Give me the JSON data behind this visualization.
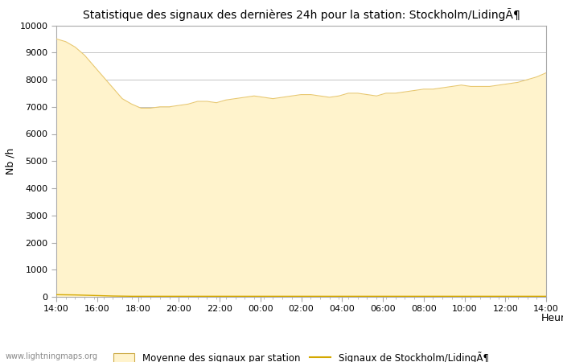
{
  "title": "Statistique des signaux des dernières 24h pour la station: Stockholm/LidingA¶",
  "title_display": "Statistique des signaux des dernières 24h pour la station: Stockholm/LidingÃ¶",
  "xlabel": "Heure",
  "ylabel": "Nb /h",
  "ylim": [
    0,
    10000
  ],
  "yticks": [
    0,
    1000,
    2000,
    3000,
    4000,
    5000,
    6000,
    7000,
    8000,
    9000,
    10000
  ],
  "xtick_labels": [
    "14:00",
    "16:00",
    "18:00",
    "20:00",
    "22:00",
    "00:00",
    "02:00",
    "04:00",
    "06:00",
    "08:00",
    "10:00",
    "12:00",
    "14:00"
  ],
  "fill_color": "#FFF3CC",
  "fill_edge_color": "#E8C870",
  "line_color": "#D4A800",
  "background_color": "#ffffff",
  "grid_color": "#bbbbbb",
  "watermark": "www.lightningmaps.org",
  "legend_fill_label": "Moyenne des signaux par station",
  "legend_line_label": "Signaux de Stockholm/LidingÃ¶",
  "avg_values": [
    9500,
    9400,
    9200,
    8900,
    8500,
    8100,
    7700,
    7300,
    7100,
    6950,
    6950,
    7000,
    7000,
    7050,
    7100,
    7200,
    7200,
    7150,
    7250,
    7300,
    7350,
    7400,
    7350,
    7300,
    7350,
    7400,
    7450,
    7450,
    7400,
    7350,
    7400,
    7500,
    7500,
    7450,
    7400,
    7500,
    7500,
    7550,
    7600,
    7650,
    7650,
    7700,
    7750,
    7800,
    7750,
    7750,
    7750,
    7800,
    7850,
    7900,
    8000,
    8100,
    8250
  ],
  "station_values": [
    80,
    75,
    70,
    60,
    50,
    40,
    30,
    25,
    20,
    20,
    20,
    20,
    20,
    20,
    20,
    20,
    20,
    20,
    20,
    20,
    20,
    20,
    20,
    20,
    20,
    20,
    20,
    20,
    20,
    20,
    20,
    20,
    20,
    20,
    20,
    20,
    20,
    20,
    20,
    20,
    20,
    20,
    20,
    20,
    20,
    20,
    20,
    20,
    20,
    20,
    20,
    20,
    20
  ]
}
